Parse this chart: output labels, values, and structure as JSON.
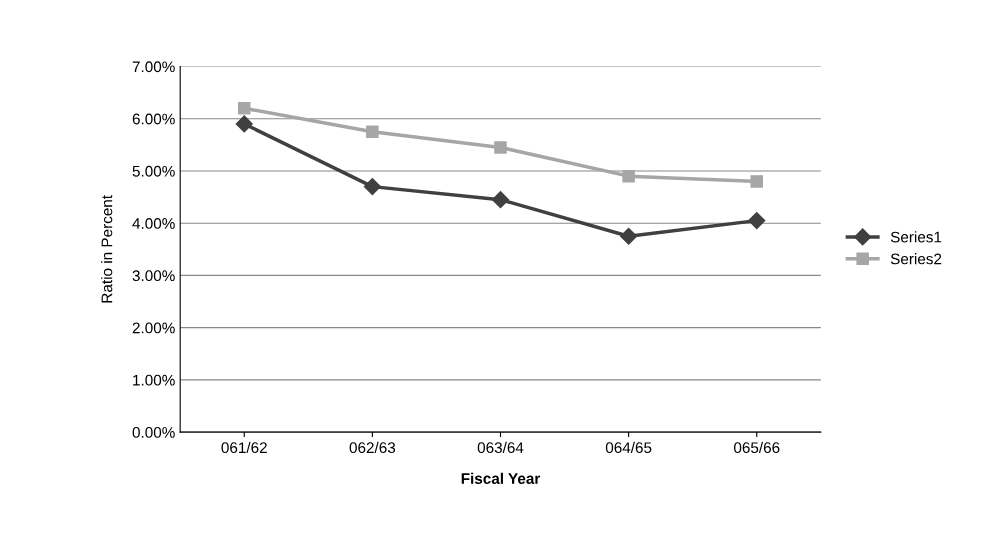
{
  "chart_data": {
    "type": "line",
    "xlabel": "Fiscal Year",
    "ylabel": "Ratio in Percent",
    "categories": [
      "061/62",
      "062/63",
      "063/64",
      "064/65",
      "065/66"
    ],
    "series": [
      {
        "name": "Series1",
        "color": "#404040",
        "marker": "diamond",
        "values": [
          5.9,
          4.7,
          4.45,
          3.75,
          4.05
        ]
      },
      {
        "name": "Series2",
        "color": "#a6a6a6",
        "marker": "square",
        "values": [
          6.2,
          5.75,
          5.45,
          4.9,
          4.8
        ]
      }
    ],
    "ylim": [
      0,
      7
    ],
    "yticks": [
      {
        "value": 0,
        "label": "0.00%"
      },
      {
        "value": 1,
        "label": "1.00%"
      },
      {
        "value": 2,
        "label": "2.00%"
      },
      {
        "value": 3,
        "label": "3.00%"
      },
      {
        "value": 4,
        "label": "4.00%"
      },
      {
        "value": 5,
        "label": "5.00%"
      },
      {
        "value": 6,
        "label": "6.00%"
      },
      {
        "value": 7,
        "label": "7.00%"
      }
    ],
    "grid": "y",
    "legend": "right",
    "line_style": "solid"
  }
}
